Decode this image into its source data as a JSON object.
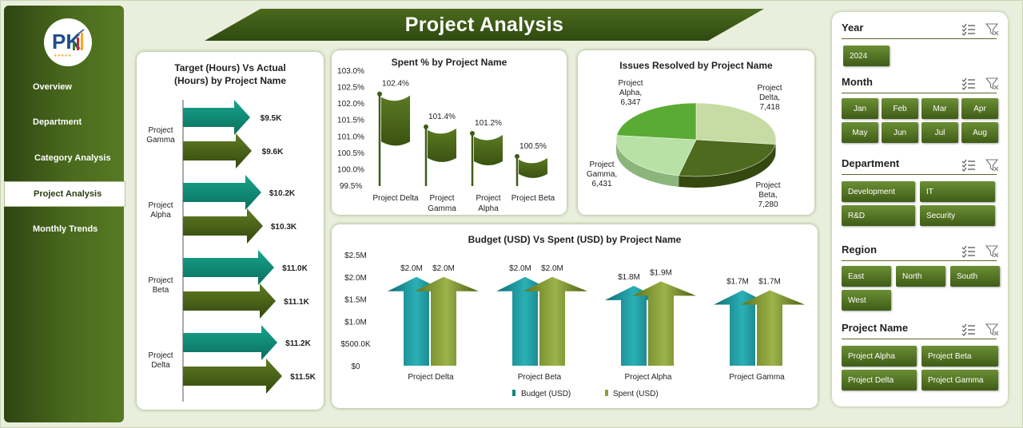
{
  "title": "Project Analysis",
  "logo": {
    "text": "PK"
  },
  "nav": [
    {
      "label": "Overview",
      "active": false
    },
    {
      "label": "Department",
      "active": false
    },
    {
      "label": "Category Analysis",
      "active": false
    },
    {
      "label": "Project Analysis",
      "active": true
    },
    {
      "label": "Monthly Trends",
      "active": false
    }
  ],
  "colors": {
    "dark_green": "#3f5c17",
    "teal": "#0f8a7a",
    "olive": "#6b7f1f",
    "accent_light": "#b9d98f"
  },
  "charts": {
    "target_actual": {
      "title_line1": "Target (Hours) Vs Actual",
      "title_line2": "(Hours) by Project Name"
    },
    "spent_pct": {
      "title": "Spent % by Project Name"
    },
    "issues": {
      "title": "Issues Resolved by Project Name"
    },
    "budget": {
      "title": "Budget (USD) Vs Spent (USD) by Project Name"
    }
  },
  "chart_data": [
    {
      "type": "bar",
      "orientation": "horizontal",
      "title": "Target (Hours) Vs Actual (Hours) by Project Name",
      "categories": [
        "Project Gamma",
        "Project Alpha",
        "Project Beta",
        "Project Delta"
      ],
      "series": [
        {
          "name": "Target (Hours)",
          "values": [
            9500,
            10200,
            11000,
            11200
          ],
          "labels": [
            "$9.5K",
            "$10.2K",
            "$11.0K",
            "$11.2K"
          ]
        },
        {
          "name": "Actual (Hours)",
          "values": [
            9600,
            10300,
            11100,
            11500
          ],
          "labels": [
            "$9.6K",
            "$10.3K",
            "$11.1K",
            "$11.5K"
          ]
        }
      ]
    },
    {
      "type": "bar",
      "title": "Spent % by Project Name",
      "categories": [
        "Project Delta",
        "Project Gamma",
        "Project Alpha",
        "Project Beta"
      ],
      "values": [
        102.4,
        101.4,
        101.2,
        100.5
      ],
      "value_labels": [
        "102.4%",
        "101.4%",
        "101.2%",
        "100.5%"
      ],
      "ylim": [
        99.5,
        103.0
      ],
      "yticks": [
        "103.0%",
        "102.5%",
        "102.0%",
        "101.5%",
        "101.0%",
        "100.5%",
        "100.0%",
        "99.5%"
      ]
    },
    {
      "type": "pie",
      "title": "Issues Resolved by Project Name",
      "categories": [
        "Project Delta",
        "Project Beta",
        "Project Gamma",
        "Project Alpha"
      ],
      "values": [
        7418,
        7280,
        6431,
        6347
      ],
      "value_labels": [
        "7,418",
        "7,280",
        "6,431",
        "6,347"
      ]
    },
    {
      "type": "bar",
      "title": "Budget (USD) Vs Spent (USD) by Project Name",
      "categories": [
        "Project Delta",
        "Project Beta",
        "Project Alpha",
        "Project Gamma"
      ],
      "series": [
        {
          "name": "Budget (USD)",
          "values": [
            2000000,
            2000000,
            1800000,
            1700000
          ],
          "labels": [
            "$2.0M",
            "$2.0M",
            "$1.8M",
            "$1.7M"
          ]
        },
        {
          "name": "Spent (USD)",
          "values": [
            2000000,
            2000000,
            1900000,
            1700000
          ],
          "labels": [
            "$2.0M",
            "$2.0M",
            "$1.9M",
            "$1.7M"
          ]
        }
      ],
      "ylim": [
        0,
        2500000
      ],
      "yticks": [
        "$2.5M",
        "$2.0M",
        "$1.5M",
        "$1.0M",
        "$500.0K",
        "$0"
      ],
      "legend": "bottom"
    }
  ],
  "filters": {
    "year": {
      "label": "Year",
      "options": [
        "2024"
      ]
    },
    "month": {
      "label": "Month",
      "options": [
        "Jan",
        "Feb",
        "Mar",
        "Apr",
        "May",
        "Jun",
        "Jul",
        "Aug"
      ]
    },
    "department": {
      "label": "Department",
      "options": [
        "Development",
        "IT",
        "R&D",
        "Security"
      ]
    },
    "region": {
      "label": "Region",
      "options": [
        "East",
        "North",
        "South",
        "West"
      ]
    },
    "project": {
      "label": "Project Name",
      "options": [
        "Project Alpha",
        "Project Beta",
        "Project Delta",
        "Project Gamma"
      ]
    }
  },
  "icons": {
    "multiselect": "multiselect-icon",
    "clear_filter": "clear-filter-icon"
  }
}
